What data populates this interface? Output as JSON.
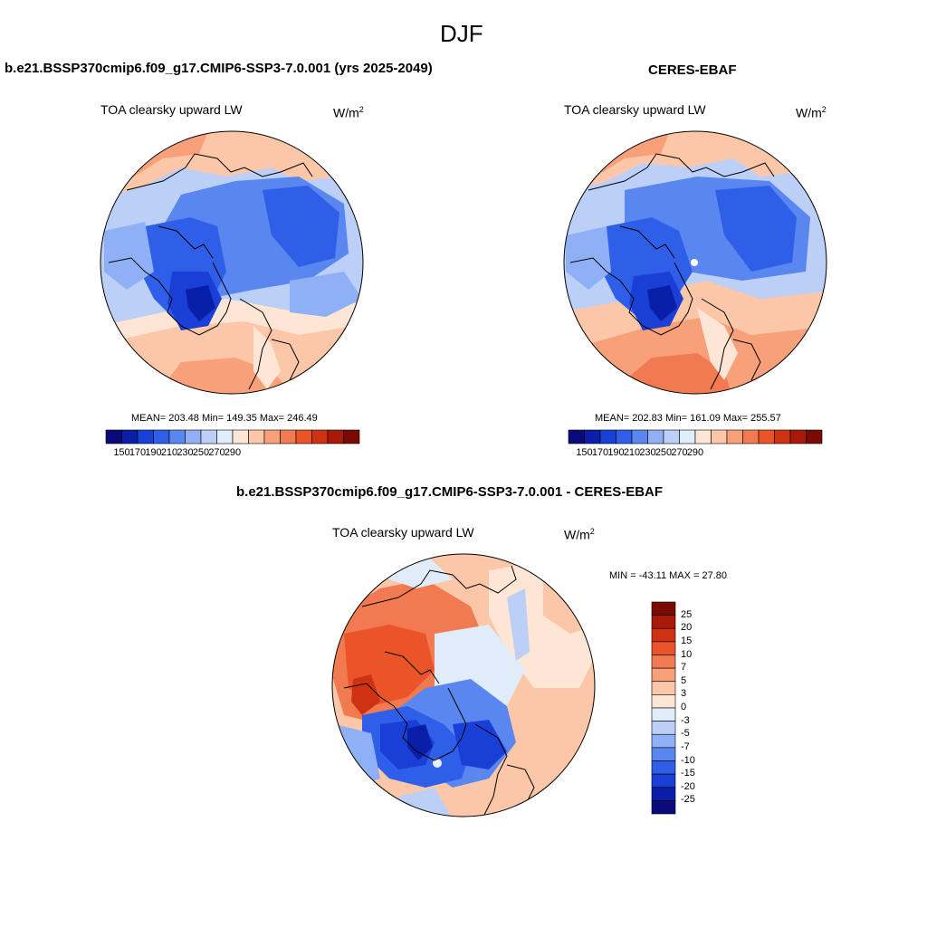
{
  "figure": {
    "season": "DJF"
  },
  "panel_left": {
    "title": "b.e21.BSSP370cmip6.f09_g17.CMIP6-SSP3-7.0.001 (yrs 2025-2049)",
    "variable": "TOA clearsky upward LW",
    "units_base": "W/m",
    "units_exp": "2",
    "stats": "MEAN= 203.48  Min= 149.35  Max= 246.49"
  },
  "panel_right": {
    "title": "CERES-EBAF",
    "variable": "TOA clearsky upward LW",
    "units_base": "W/m",
    "units_exp": "2",
    "stats": "MEAN= 202.83  Min= 161.09  Max= 255.57"
  },
  "panel_diff": {
    "title": "b.e21.BSSP370cmip6.f09_g17.CMIP6-SSP3-7.0.001 - CERES-EBAF",
    "variable": "TOA clearsky upward LW",
    "units_base": "W/m",
    "units_exp": "2",
    "stats": "MIN = -43.11 MAX =  27.80"
  },
  "colorbar_abs": {
    "colors": [
      "#0a0a7a",
      "#0a1fa8",
      "#1a3fd6",
      "#2f5fe8",
      "#5a86f0",
      "#8fb0f5",
      "#bcd0f7",
      "#e0ecfa",
      "#fde6d6",
      "#fcc7a8",
      "#f8a07a",
      "#f27a50",
      "#ea5428",
      "#cf3212",
      "#a81a08",
      "#7a0a04"
    ],
    "ticks": [
      "150",
      "170",
      "190",
      "210",
      "230",
      "250",
      "270",
      "290"
    ]
  },
  "colorbar_diff": {
    "colors": [
      "#7a0a04",
      "#a81a08",
      "#cf3212",
      "#ea5428",
      "#f27a50",
      "#f8a07a",
      "#fcc7a8",
      "#fde6d6",
      "#e0ecfa",
      "#bcd0f7",
      "#8fb0f5",
      "#5a86f0",
      "#2f5fe8",
      "#1a3fd6",
      "#0a1fa8",
      "#0a0a7a"
    ],
    "ticks": [
      "25",
      "20",
      "15",
      "10",
      "7",
      "5",
      "3",
      "0",
      "-3",
      "-5",
      "-7",
      "-10",
      "-15",
      "-20",
      "-25"
    ]
  }
}
